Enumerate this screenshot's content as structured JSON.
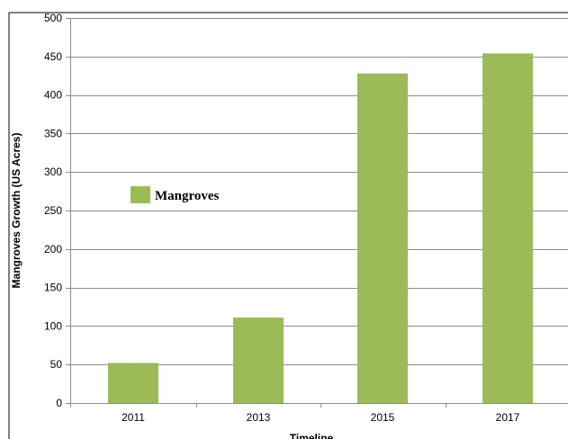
{
  "chart_data": {
    "type": "bar",
    "title": "",
    "xlabel": "Timeline",
    "ylabel": "Mangroves Growth (US Acres)",
    "categories": [
      "2011",
      "2013",
      "2015",
      "2017"
    ],
    "series": [
      {
        "name": "Mangroves",
        "values": [
          52,
          111,
          428,
          454
        ],
        "color": "#9bbb59"
      }
    ],
    "ylim": [
      0,
      500
    ],
    "yticks": [
      0,
      50,
      100,
      150,
      200,
      250,
      300,
      350,
      400,
      450,
      500
    ],
    "grid": true,
    "legend_position": "upper-left"
  }
}
